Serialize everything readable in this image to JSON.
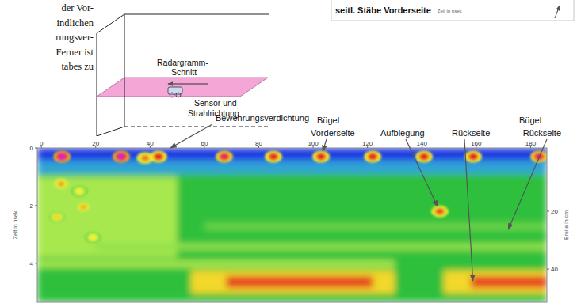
{
  "text_fragments": [
    "der Vor-",
    "indlichen",
    "rungsver-",
    "Ferner ist",
    "tabes zu"
  ],
  "schematic": {
    "section_label": [
      "Radargramm-",
      "Schnitt"
    ],
    "sensor_label": [
      "Sensor und",
      "Strahlrichtung"
    ]
  },
  "inset": {
    "label": "seitl. Stäbe Vorderseite",
    "axis_title": "Zeit in nsek"
  },
  "chart_data": {
    "type": "heatmap",
    "y_label": "Zeit in nsek",
    "y2_label": "Breite in cm",
    "xlim": [
      -1.5,
      186
    ],
    "xticks": [
      0,
      20,
      40,
      60,
      80,
      100,
      120,
      140,
      160,
      180
    ],
    "ylim": [
      0,
      5.35
    ],
    "yticks": [
      0,
      2,
      4
    ],
    "y2lim": [
      -1.9,
      51.5
    ],
    "y2ticks": [
      20,
      40
    ],
    "bands": [
      {
        "x": [
          -1.5,
          186
        ],
        "t": [
          0,
          0.45
        ],
        "level": 0.05
      },
      {
        "x": [
          -1.5,
          186
        ],
        "t": [
          0.45,
          0.9
        ],
        "level": 0.22
      },
      {
        "x": [
          -1.5,
          186
        ],
        "t": [
          0.9,
          5.35
        ],
        "level": 0.42
      },
      {
        "x": [
          -1.5,
          50
        ],
        "t": [
          1.0,
          3.8
        ],
        "level": 0.58
      },
      {
        "x": [
          20,
          186
        ],
        "t": [
          3.3,
          3.55
        ],
        "level": 0.55
      },
      {
        "x": [
          -1.5,
          130
        ],
        "t": [
          3.9,
          4.15
        ],
        "level": 0.58
      },
      {
        "x": [
          60,
          186
        ],
        "t": [
          2.6,
          2.85
        ],
        "level": 0.5
      },
      {
        "x": [
          55,
          130
        ],
        "t": [
          4.25,
          5.05
        ],
        "level": 0.75
      },
      {
        "x": [
          148,
          186
        ],
        "t": [
          4.25,
          5.05
        ],
        "level": 0.75
      },
      {
        "x": [
          68,
          122
        ],
        "t": [
          4.45,
          4.85
        ],
        "level": 0.9
      },
      {
        "x": [
          158,
          186
        ],
        "t": [
          4.45,
          4.85
        ],
        "level": 0.9
      }
    ],
    "reflections": [
      {
        "x": 7.6,
        "t": 0.3,
        "level": 1
      },
      {
        "x": 29.4,
        "t": 0.3,
        "level": 1
      },
      {
        "x": 38.2,
        "t": 0.35,
        "level": 0.85
      },
      {
        "x": 43.1,
        "t": 0.3,
        "level": 0.92
      },
      {
        "x": 67.3,
        "t": 0.3,
        "level": 0.95
      },
      {
        "x": 85.4,
        "t": 0.3,
        "level": 0.92
      },
      {
        "x": 102.9,
        "t": 0.3,
        "level": 0.92
      },
      {
        "x": 121.9,
        "t": 0.3,
        "level": 0.92
      },
      {
        "x": 140.8,
        "t": 0.3,
        "level": 0.92
      },
      {
        "x": 158.9,
        "t": 0.3,
        "level": 0.92
      },
      {
        "x": 183.1,
        "t": 0.3,
        "level": 0.95
      },
      {
        "x": 7.3,
        "t": 1.25,
        "level": 0.8
      },
      {
        "x": 14,
        "t": 1.5,
        "level": 0.72
      },
      {
        "x": 15.5,
        "t": 2.05,
        "level": 0.78
      },
      {
        "x": 5.8,
        "t": 2.4,
        "level": 0.75
      },
      {
        "x": 19,
        "t": 3.1,
        "level": 0.72
      },
      {
        "x": 146.6,
        "t": 2.2,
        "level": 0.88
      }
    ],
    "annotations": [
      {
        "text": [
          "Bewehrungsverdichtung"
        ],
        "x": 47.5,
        "t": 0
      },
      {
        "text": [
          "Bügel",
          "Vorderseite"
        ],
        "x": 102.9,
        "t": 0.3
      },
      {
        "text": [
          "Aufbiegung"
        ],
        "x": 146.6,
        "t": 2.2
      },
      {
        "text": [
          "Rückseite"
        ],
        "x": 158.9,
        "t": 4.8
      },
      {
        "text": [
          "Bügel",
          "Rückseite"
        ],
        "x": 171,
        "t": 3.0
      }
    ]
  }
}
